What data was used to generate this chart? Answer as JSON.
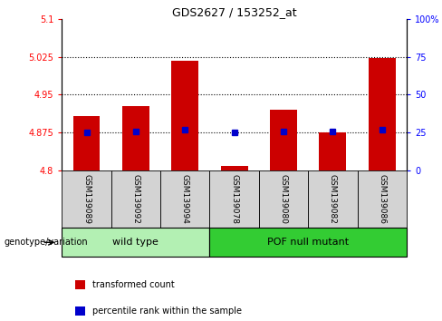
{
  "title": "GDS2627 / 153252_at",
  "samples": [
    "GSM139089",
    "GSM139092",
    "GSM139094",
    "GSM139078",
    "GSM139080",
    "GSM139082",
    "GSM139086"
  ],
  "bar_values": [
    4.907,
    4.928,
    5.018,
    4.808,
    4.921,
    4.875,
    5.022
  ],
  "percentile_values": [
    4.875,
    4.876,
    4.88,
    4.875,
    4.876,
    4.876,
    4.881
  ],
  "bar_bottom": 4.8,
  "ylim_left": [
    4.8,
    5.1
  ],
  "ylim_right": [
    0,
    100
  ],
  "yticks_left": [
    4.8,
    4.875,
    4.95,
    5.025,
    5.1
  ],
  "ytick_labels_left": [
    "4.8",
    "4.875",
    "4.95",
    "5.025",
    "5.1"
  ],
  "yticks_right": [
    0,
    25,
    50,
    75,
    100
  ],
  "ytick_labels_right": [
    "0",
    "25",
    "50",
    "75",
    "100%"
  ],
  "hlines": [
    4.875,
    4.95,
    5.025
  ],
  "groups": [
    {
      "label": "wild type",
      "indices": [
        0,
        1,
        2
      ],
      "color": "#b3f0b3"
    },
    {
      "label": "POF null mutant",
      "indices": [
        3,
        4,
        5,
        6
      ],
      "color": "#33cc33"
    }
  ],
  "bar_color": "#CC0000",
  "percentile_color": "#0000CC",
  "group_label_text": "genotype/variation",
  "legend_items": [
    {
      "color": "#CC0000",
      "label": "transformed count"
    },
    {
      "color": "#0000CC",
      "label": "percentile rank within the sample"
    }
  ]
}
